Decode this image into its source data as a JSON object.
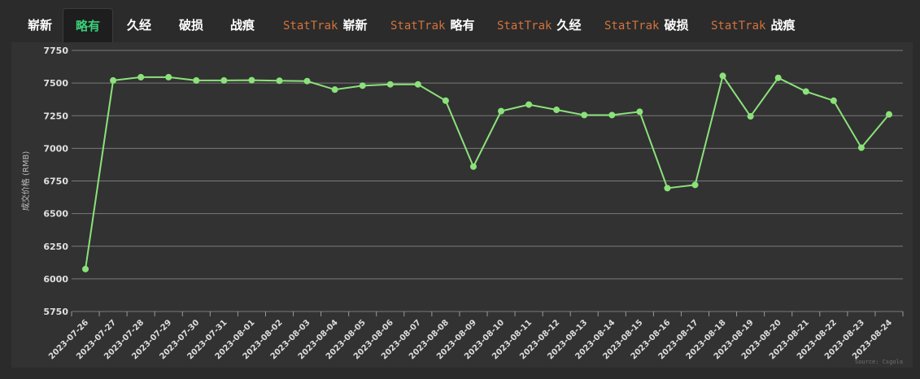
{
  "tabs": [
    {
      "prefix": "",
      "label": "崭新",
      "active": false
    },
    {
      "prefix": "",
      "label": "略有",
      "active": true
    },
    {
      "prefix": "",
      "label": "久经",
      "active": false
    },
    {
      "prefix": "",
      "label": "破损",
      "active": false
    },
    {
      "prefix": "",
      "label": "战痕",
      "active": false
    },
    {
      "prefix": "StatTrak",
      "label": "崭新",
      "active": false
    },
    {
      "prefix": "StatTrak",
      "label": "略有",
      "active": false
    },
    {
      "prefix": "StatTrak",
      "label": "久经",
      "active": false
    },
    {
      "prefix": "StatTrak",
      "label": "破损",
      "active": false
    },
    {
      "prefix": "StatTrak",
      "label": "战痕",
      "active": false
    }
  ],
  "colors": {
    "line": "#8be27a",
    "grid": "#7a7a7a",
    "tab_active": "#3ad07a",
    "stattrak": "#d4733b"
  },
  "chart_data": {
    "type": "line",
    "ylabel": "成交价格 (RMB)",
    "source": "Source: Csgola",
    "ylim": [
      5750,
      7750
    ],
    "yticks": [
      7750,
      7500,
      7250,
      7000,
      6750,
      6500,
      6250,
      6000,
      5750
    ],
    "x": [
      "2023-07-26",
      "2023-07-27",
      "2023-07-28",
      "2023-07-29",
      "2023-07-30",
      "2023-07-31",
      "2023-08-01",
      "2023-08-02",
      "2023-08-03",
      "2023-08-04",
      "2023-08-05",
      "2023-08-06",
      "2023-08-07",
      "2023-08-08",
      "2023-08-09",
      "2023-08-10",
      "2023-08-11",
      "2023-08-12",
      "2023-08-13",
      "2023-08-14",
      "2023-08-15",
      "2023-08-16",
      "2023-08-17",
      "2023-08-18",
      "2023-08-19",
      "2023-08-20",
      "2023-08-21",
      "2023-08-22",
      "2023-08-23",
      "2023-08-24"
    ],
    "series": [
      {
        "values": [
          6075,
          7520,
          7545,
          7545,
          7520,
          7520,
          7522,
          7518,
          7515,
          7450,
          7480,
          7490,
          7490,
          7365,
          6860,
          7285,
          7335,
          7295,
          7255,
          7255,
          7280,
          6695,
          6720,
          7555,
          7245,
          7540,
          7435,
          7365,
          7005,
          7260
        ]
      }
    ]
  }
}
